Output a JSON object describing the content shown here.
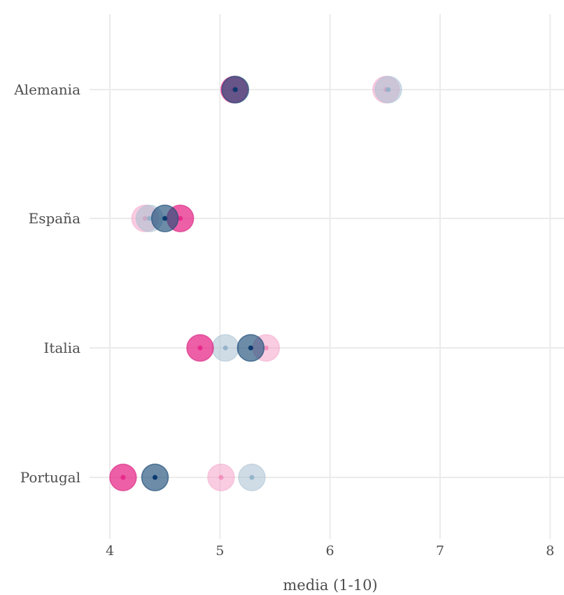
{
  "chart_data": {
    "type": "scatter",
    "title": "",
    "xlabel": "media (1-10)",
    "ylabel": "",
    "xlim": [
      3.95,
      8.15
    ],
    "xticks": [
      "4",
      "5",
      "6",
      "7",
      "8"
    ],
    "xtick_values": [
      4,
      5,
      6,
      7,
      8
    ],
    "categories": [
      "Alemania",
      "España",
      "Italia",
      "Portugal"
    ],
    "grid": true,
    "legend": "none",
    "series": [
      {
        "style": "pink-solid",
        "color": "#e7298a",
        "values": [
          5.13,
          4.64,
          4.82,
          4.12
        ]
      },
      {
        "style": "blue-solid",
        "color": "#1f4e79",
        "values": [
          5.14,
          4.5,
          5.28,
          4.41
        ]
      },
      {
        "style": "pink-faded",
        "color": "#f4a3c8",
        "values": [
          6.51,
          4.32,
          5.42,
          5.01
        ]
      },
      {
        "style": "blue-faded",
        "color": "#a7bfd2",
        "values": [
          6.53,
          4.36,
          5.05,
          5.29
        ]
      }
    ]
  }
}
